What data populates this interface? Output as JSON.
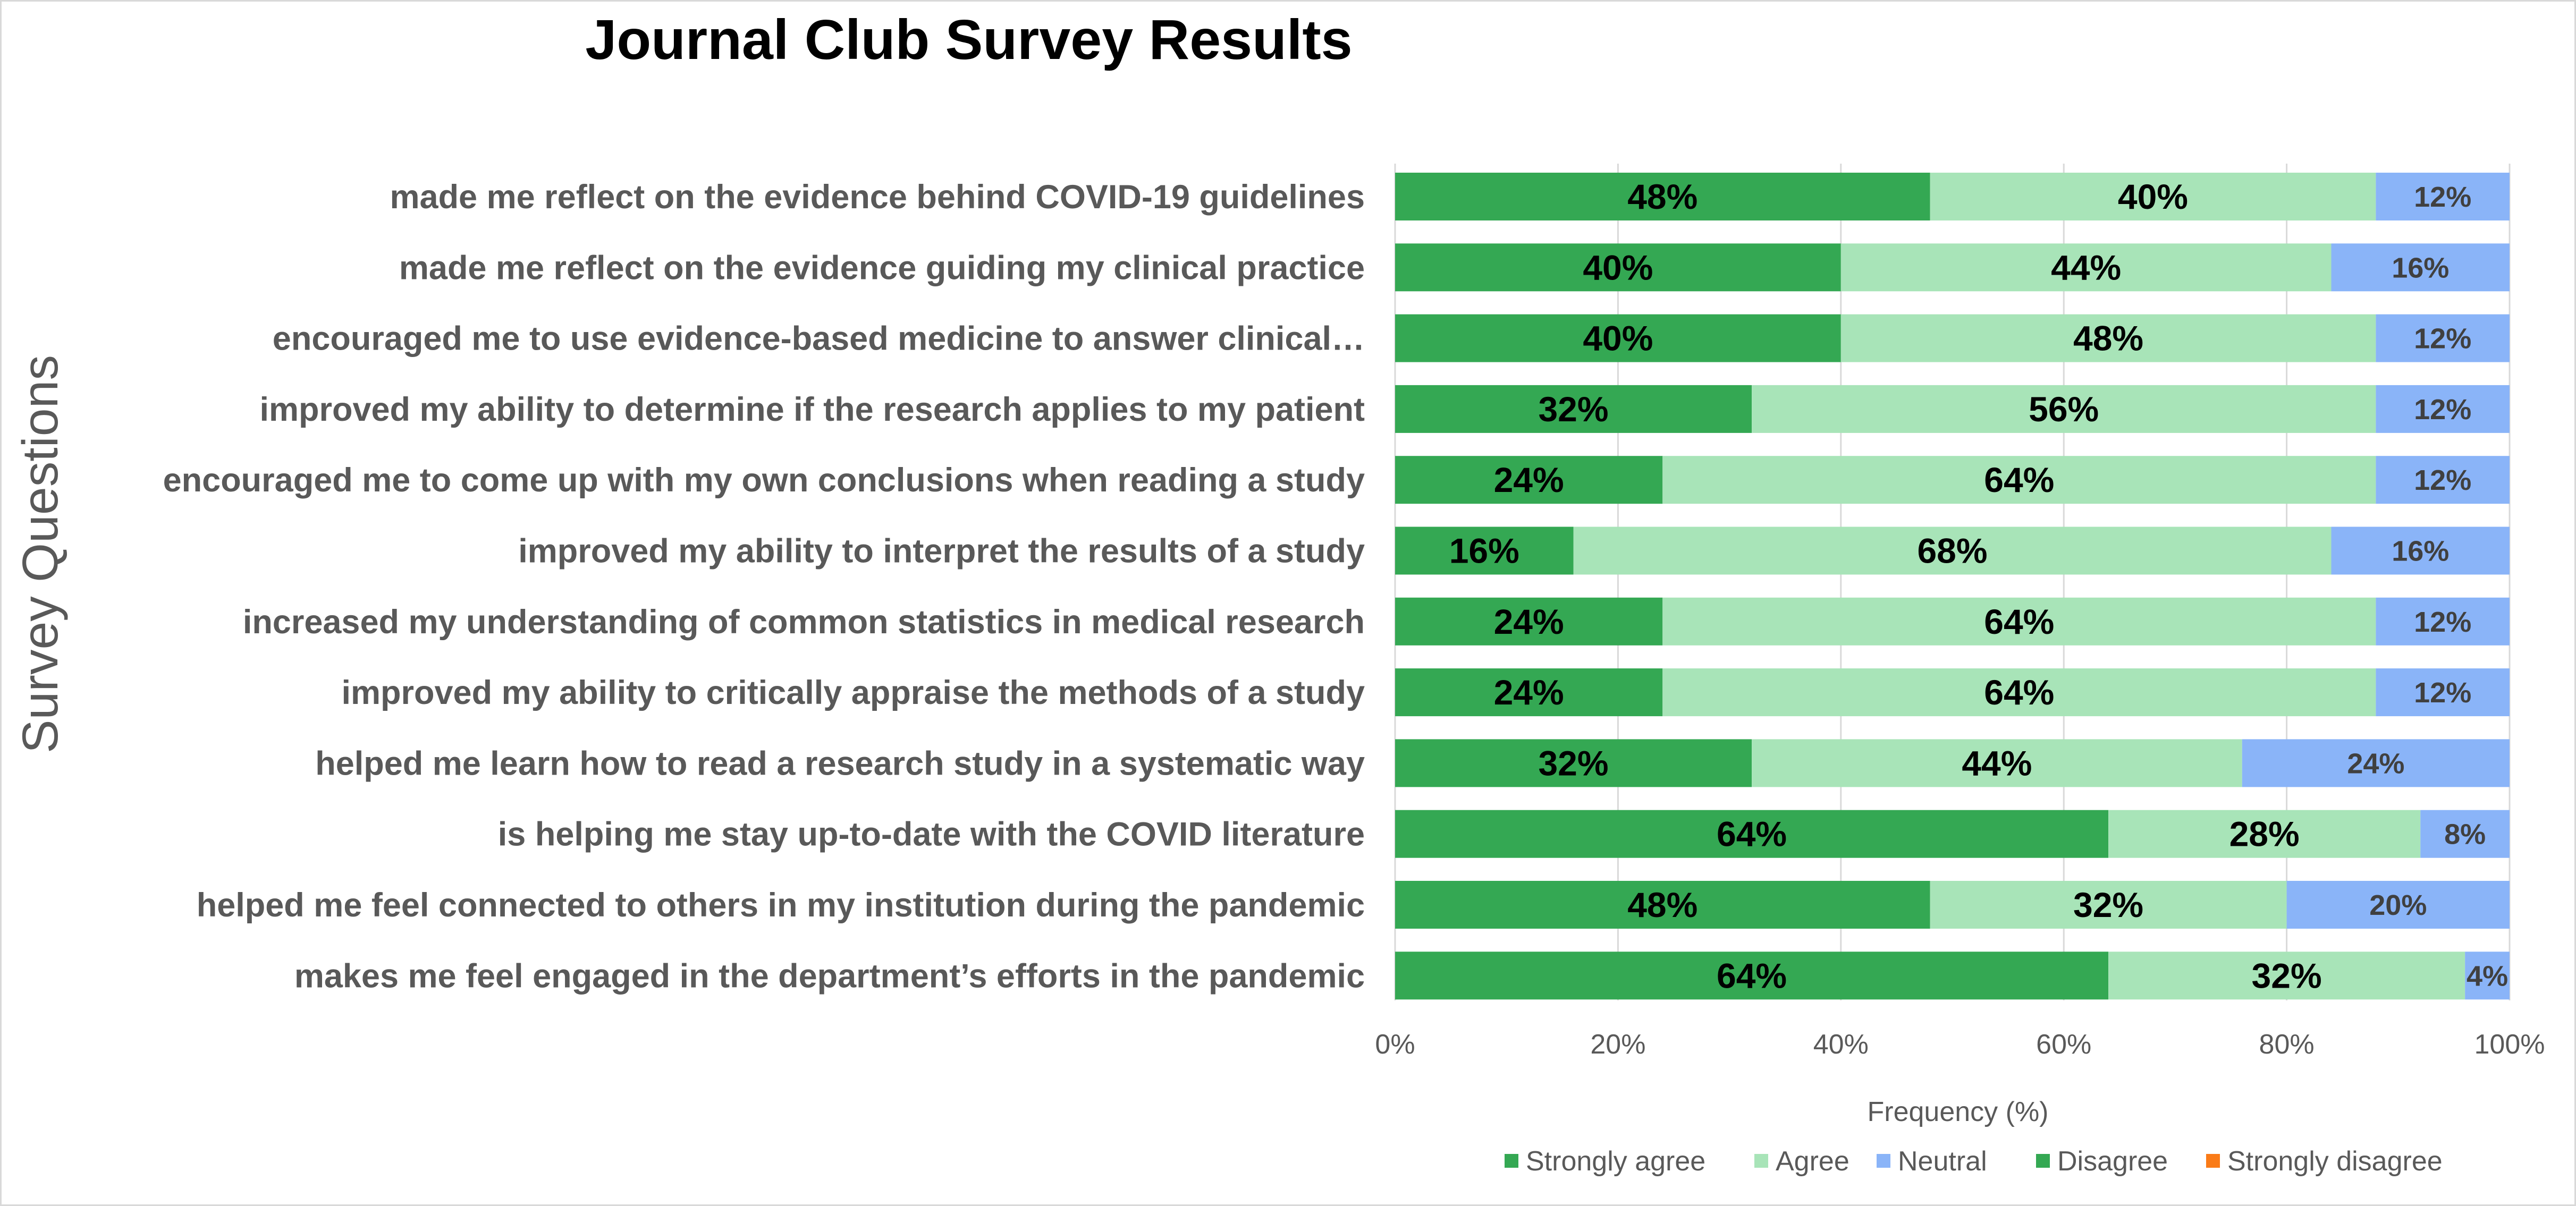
{
  "chart_data": {
    "type": "bar",
    "orientation": "horizontal",
    "stacked": "percent",
    "title": "Journal Club Survey Results",
    "xlabel": "Frequency (%)",
    "ylabel": "Survey Questions",
    "xlim": [
      0,
      100
    ],
    "x_ticks": [
      "0%",
      "20%",
      "40%",
      "60%",
      "80%",
      "100%"
    ],
    "grid": true,
    "legend_position": "bottom",
    "categories": [
      "made me reflect on the evidence behind COVID-19 guidelines",
      "made me reflect on the evidence guiding my clinical practice",
      "encouraged me to use evidence-based medicine to answer clinical…",
      "improved my ability to determine if the research applies to my patient",
      "encouraged me to come up with my own conclusions when reading a study",
      "improved my ability to interpret the results of a study",
      "increased my understanding of common statistics in medical research",
      "improved my ability to critically appraise the methods of a study",
      "helped me learn how to read a research study in a systematic way",
      "is helping me stay up-to-date with the COVID literature",
      "helped me feel connected to others in my institution during the pandemic",
      "makes me feel engaged in the department’s efforts in the pandemic"
    ],
    "series": [
      {
        "name": "Strongly agree",
        "color": "#34a853",
        "values": [
          48,
          40,
          40,
          32,
          24,
          16,
          24,
          24,
          32,
          64,
          48,
          64
        ]
      },
      {
        "name": "Agree",
        "color": "#a8e4b8",
        "values": [
          40,
          44,
          48,
          56,
          64,
          68,
          64,
          64,
          44,
          28,
          32,
          32
        ]
      },
      {
        "name": "Neutral",
        "color": "#8ab4f8",
        "values": [
          12,
          16,
          12,
          12,
          12,
          16,
          12,
          12,
          24,
          8,
          20,
          4
        ]
      },
      {
        "name": "Disagree",
        "color": "#34a853",
        "values": [
          0,
          0,
          0,
          0,
          0,
          0,
          0,
          0,
          0,
          0,
          0,
          0
        ]
      },
      {
        "name": "Strongly disagree",
        "color": "#fa7b17",
        "values": [
          0,
          0,
          0,
          0,
          0,
          0,
          0,
          0,
          0,
          0,
          0,
          0
        ]
      }
    ]
  }
}
